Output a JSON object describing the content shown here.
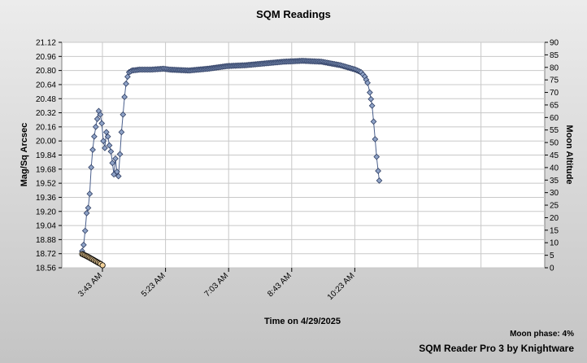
{
  "chart_data": {
    "type": "scatter",
    "title": "SQM Readings",
    "xlabel": "Time on 4/29/2025",
    "ylabel": "Mag/Sq Arcsec",
    "y2label": "Moon Altitude",
    "x_ticks": [
      "3:43 AM",
      "5:23 AM",
      "7:03 AM",
      "8:43 AM",
      "10:23 AM"
    ],
    "ylim": [
      18.56,
      21.12
    ],
    "y_ticks": [
      "18.56",
      "18.72",
      "18.88",
      "19.04",
      "19.20",
      "19.36",
      "19.52",
      "19.68",
      "19.84",
      "20.00",
      "20.16",
      "20.32",
      "20.48",
      "20.64",
      "20.80",
      "20.96",
      "21.12"
    ],
    "y2lim": [
      0,
      90
    ],
    "y2_ticks": [
      "0",
      "5",
      "10",
      "15",
      "20",
      "25",
      "30",
      "35",
      "40",
      "45",
      "50",
      "55",
      "60",
      "65",
      "70",
      "75",
      "80",
      "85",
      "90"
    ],
    "grid": true,
    "sqm_series": {
      "marker": "diamond",
      "color": "#4a5f8c",
      "keypoints": [
        [
          3.18,
          18.75
        ],
        [
          3.22,
          18.82
        ],
        [
          3.26,
          18.98
        ],
        [
          3.3,
          19.18
        ],
        [
          3.34,
          19.24
        ],
        [
          3.38,
          19.4
        ],
        [
          3.42,
          19.7
        ],
        [
          3.46,
          19.9
        ],
        [
          3.5,
          20.05
        ],
        [
          3.54,
          20.16
        ],
        [
          3.58,
          20.25
        ],
        [
          3.62,
          20.34
        ],
        [
          3.66,
          20.3
        ],
        [
          3.7,
          20.2
        ],
        [
          3.74,
          20.0
        ],
        [
          3.78,
          19.92
        ],
        [
          3.82,
          20.1
        ],
        [
          3.86,
          20.05
        ],
        [
          3.9,
          19.95
        ],
        [
          3.94,
          19.88
        ],
        [
          3.98,
          19.75
        ],
        [
          4.02,
          19.62
        ],
        [
          4.06,
          19.8
        ],
        [
          4.1,
          19.65
        ],
        [
          4.14,
          19.6
        ],
        [
          4.18,
          19.85
        ],
        [
          4.22,
          20.1
        ],
        [
          4.26,
          20.3
        ],
        [
          4.3,
          20.5
        ],
        [
          4.34,
          20.65
        ],
        [
          4.38,
          20.73
        ],
        [
          4.42,
          20.78
        ],
        [
          4.5,
          20.8
        ],
        [
          4.7,
          20.81
        ],
        [
          5.0,
          20.81
        ],
        [
          5.33,
          20.82
        ],
        [
          5.5,
          20.81
        ],
        [
          6.0,
          20.8
        ],
        [
          6.5,
          20.82
        ],
        [
          7.0,
          20.85
        ],
        [
          7.5,
          20.86
        ],
        [
          8.0,
          20.88
        ],
        [
          8.5,
          20.9
        ],
        [
          9.0,
          20.91
        ],
        [
          9.5,
          20.9
        ],
        [
          10.0,
          20.86
        ],
        [
          10.4,
          20.81
        ],
        [
          10.55,
          20.78
        ],
        [
          10.65,
          20.73
        ],
        [
          10.72,
          20.66
        ],
        [
          10.78,
          20.55
        ],
        [
          10.84,
          20.4
        ],
        [
          10.88,
          20.22
        ],
        [
          10.92,
          20.02
        ],
        [
          10.96,
          19.82
        ],
        [
          11.0,
          19.66
        ],
        [
          11.03,
          19.55
        ]
      ]
    },
    "moon_series": {
      "marker": "circle",
      "color": "#f3d29a",
      "keypoints": [
        [
          3.18,
          5.5
        ],
        [
          3.25,
          5.0
        ],
        [
          3.32,
          4.5
        ],
        [
          3.39,
          3.9
        ],
        [
          3.46,
          3.3
        ],
        [
          3.53,
          2.7
        ],
        [
          3.6,
          2.1
        ],
        [
          3.67,
          1.5
        ],
        [
          3.72,
          1.0
        ]
      ]
    }
  },
  "footer": {
    "moon_phase": "Moon phase: 4%",
    "credit": "SQM Reader Pro 3 by Knightware"
  }
}
